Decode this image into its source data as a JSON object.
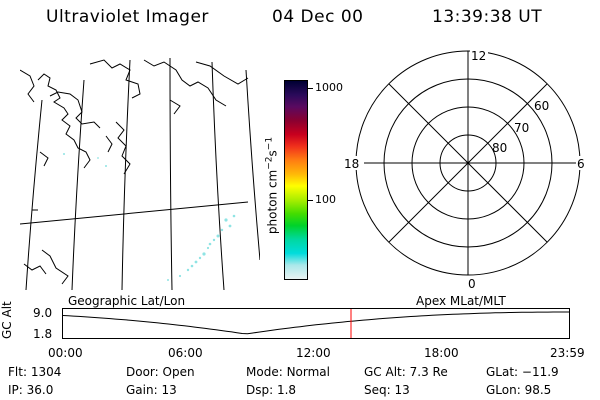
{
  "header": {
    "instrument": "Ultraviolet Imager",
    "date": "04 Dec 00",
    "time": "13:39:38 UT"
  },
  "colorbar": {
    "label_prefix": "photon cm",
    "exp1": "−2",
    "mid": "s",
    "exp2": "−1",
    "tick_top": "1000",
    "tick_mid": "100",
    "colors": [
      "#000033",
      "#2a0a5a",
      "#5a0a60",
      "#8a0030",
      "#c8001e",
      "#f0301c",
      "#ff7d12",
      "#ffb808",
      "#ffff00",
      "#aaee00",
      "#44dd00",
      "#00d22a",
      "#00d8a0",
      "#00dcdc",
      "#aae8ea",
      "#e8f2f2"
    ]
  },
  "polar": {
    "labels": [
      "12",
      "18",
      "6",
      "0",
      "60",
      "70",
      "80"
    ]
  },
  "timeline": {
    "left_label": "Geographic Lat/Lon",
    "right_label": "Apex MLat/MLT",
    "axis_label": "GC Alt",
    "y_ticks": [
      "9.0",
      "1.8"
    ],
    "x_ticks": [
      "00:00",
      "06:00",
      "12:00",
      "18:00",
      "23:59"
    ],
    "current_time_hours": 13.66,
    "marker_color": "#ff0000"
  },
  "info": {
    "row1": [
      {
        "k": "Flt:",
        "v": "1304"
      },
      {
        "k": "Door:",
        "v": "Open"
      },
      {
        "k": "Mode:",
        "v": "Normal"
      },
      {
        "k": "GC Alt:",
        "v": "7.3 Re"
      },
      {
        "k": "GLat:",
        "v": "−11.9"
      }
    ],
    "row2": [
      {
        "k": "IP:",
        "v": "36.0"
      },
      {
        "k": "Gain:",
        "v": "13"
      },
      {
        "k": "Dsp:",
        "v": "1.8"
      },
      {
        "k": "Seq:",
        "v": "13"
      },
      {
        "k": "GLon:",
        "v": "98.5"
      }
    ]
  }
}
